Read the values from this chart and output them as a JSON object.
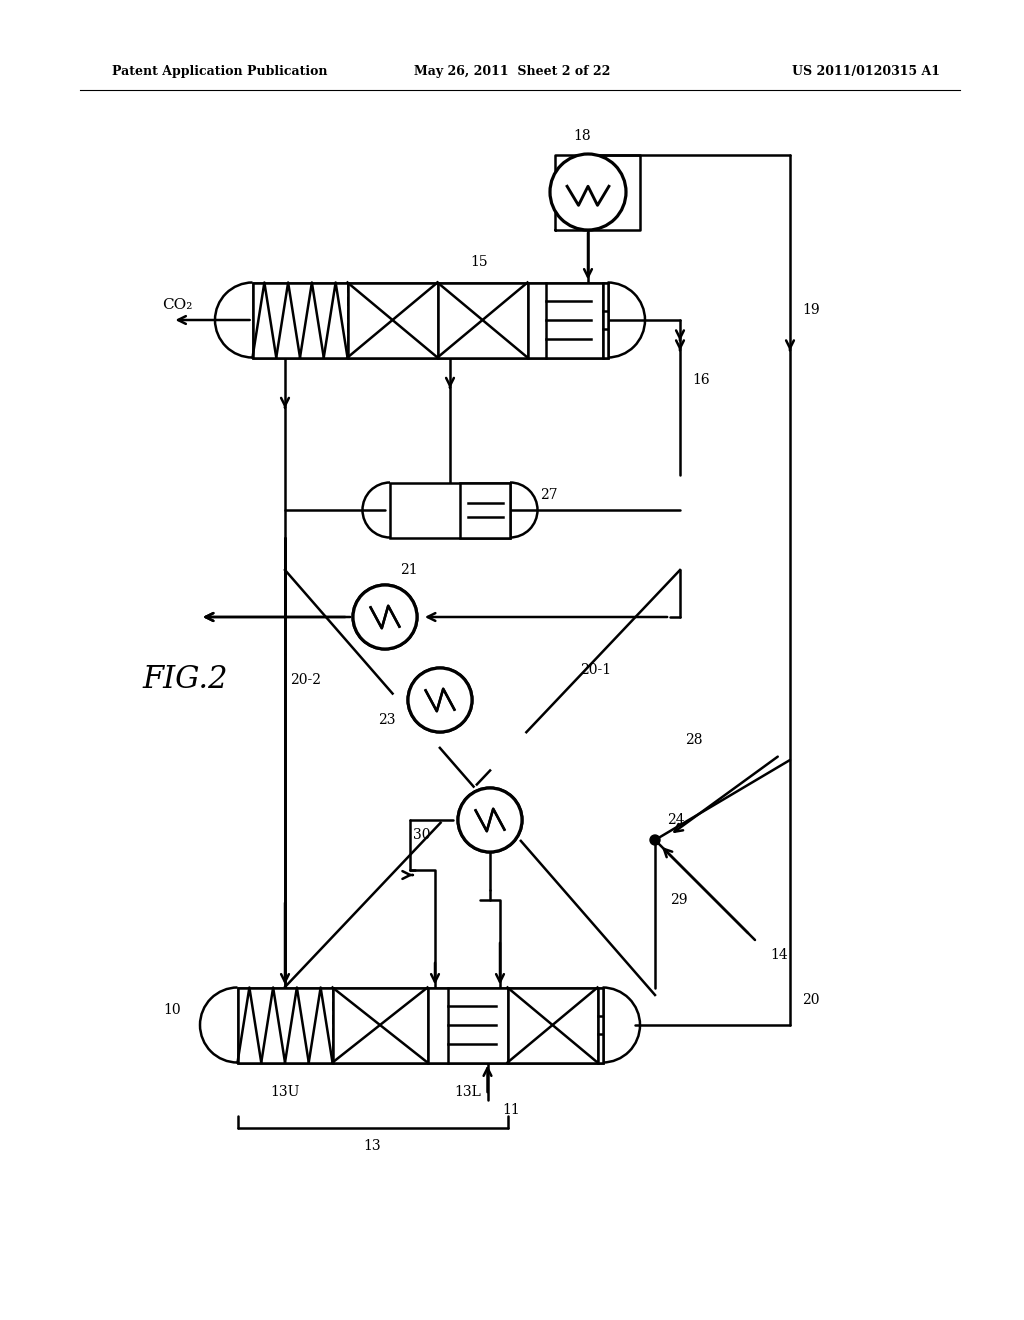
{
  "title_left": "Patent Application Publication",
  "title_mid": "May 26, 2011  Sheet 2 of 22",
  "title_right": "US 2011/0120315 A1",
  "fig_label": "FIG.2",
  "bg_color": "#ffffff",
  "line_color": "#000000",
  "lw": 1.8,
  "labels": {
    "co2": "CO₂",
    "10": "10",
    "11": "11",
    "13": "13",
    "13U": "13U",
    "13L": "13L",
    "14": "14",
    "15": "15",
    "16": "16",
    "18": "18",
    "19": "19",
    "20": "20",
    "20_1": "20-1",
    "20_2": "20-2",
    "21": "21",
    "23": "23",
    "24": "24",
    "27": "27",
    "28": "28",
    "29": "29",
    "30": "30"
  }
}
